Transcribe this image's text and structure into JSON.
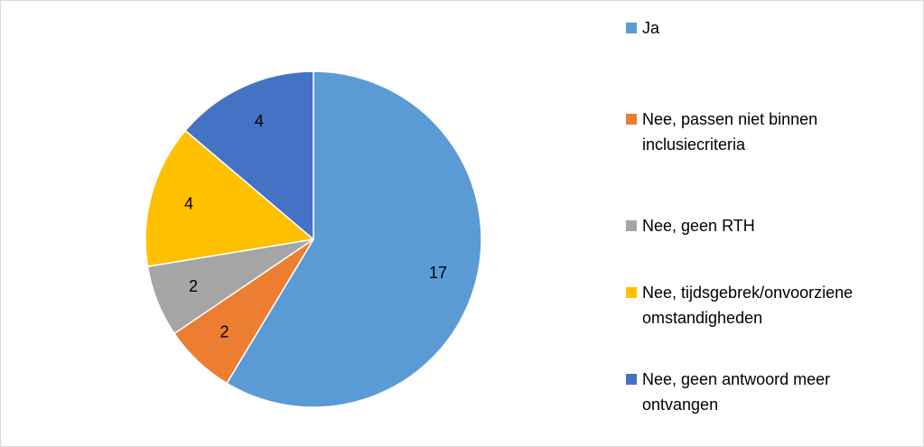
{
  "chart_data": {
    "type": "pie",
    "categories": [
      "Ja",
      "Nee, passen niet binnen inclusiecriteria",
      "Nee, geen RTH",
      "Nee, tijdsgebrek/onvoorziene omstandigheden",
      "Nee, geen antwoord meer ontvangen"
    ],
    "values": [
      17,
      2,
      2,
      4,
      4
    ],
    "colors": [
      "#5b9bd5",
      "#ed7d31",
      "#a5a5a5",
      "#ffc000",
      "#4472c4"
    ],
    "legend": "right"
  }
}
